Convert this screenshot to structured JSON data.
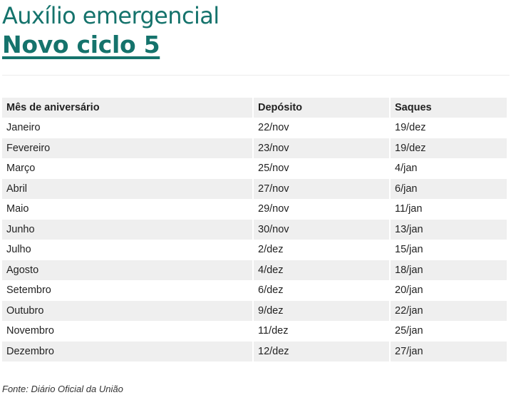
{
  "title": "Auxílio emergencial",
  "subtitle": "Novo ciclo 5",
  "table": {
    "headers": [
      "Mês de aniversário",
      "Depósito",
      "Saques"
    ],
    "rows": [
      [
        "Janeiro",
        "22/nov",
        "19/dez"
      ],
      [
        "Fevereiro",
        "23/nov",
        "19/dez"
      ],
      [
        "Março",
        "25/nov",
        "4/jan"
      ],
      [
        "Abril",
        "27/nov",
        "6/jan"
      ],
      [
        "Maio",
        "29/nov",
        "11/jan"
      ],
      [
        "Junho",
        "30/nov",
        "13/jan"
      ],
      [
        "Julho",
        "2/dez",
        "15/jan"
      ],
      [
        "Agosto",
        "4/dez",
        "18/jan"
      ],
      [
        "Setembro",
        "6/dez",
        "20/jan"
      ],
      [
        "Outubro",
        "9/dez",
        "22/jan"
      ],
      [
        "Novembro",
        "11/dez",
        "25/jan"
      ],
      [
        "Dezembro",
        "12/dez",
        "27/jan"
      ]
    ]
  },
  "source": "Fonte: Diário Oficial da União",
  "colors": {
    "accent": "#15736c",
    "stripe": "#efefef"
  }
}
